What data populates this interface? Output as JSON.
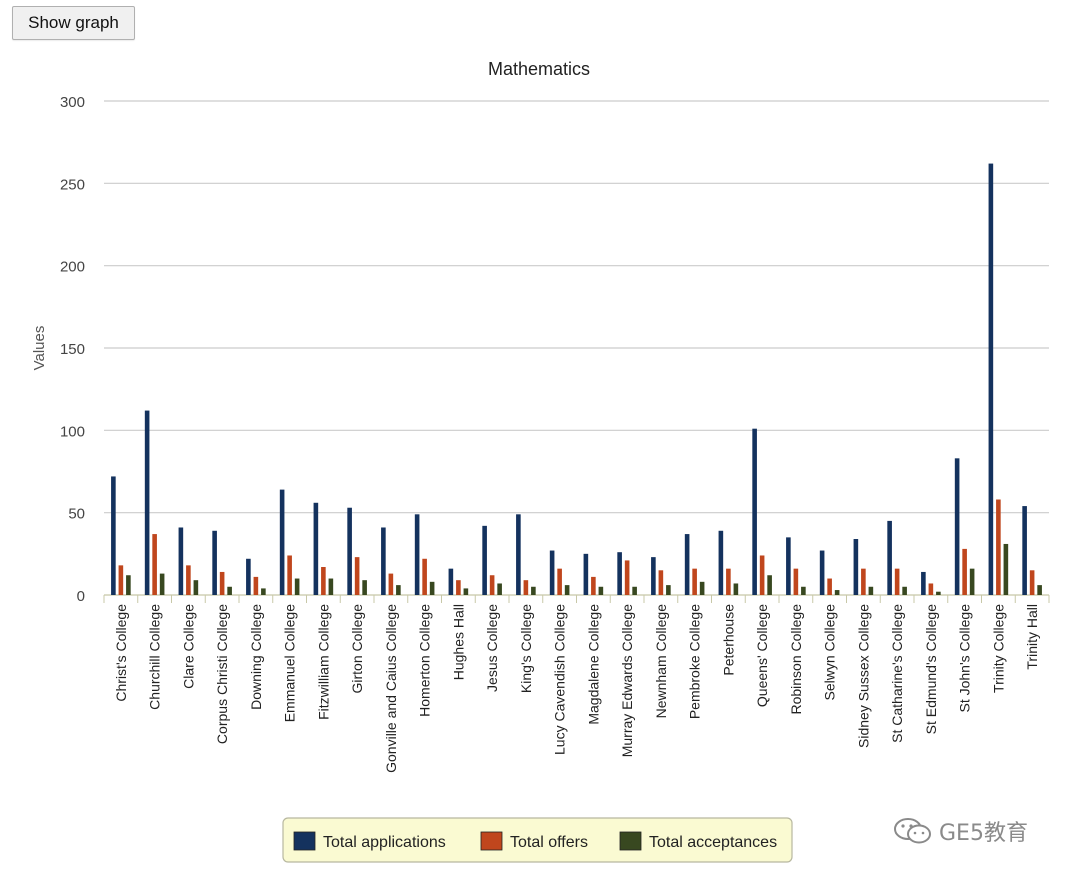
{
  "toolbar": {
    "show_graph_label": "Show graph"
  },
  "watermark": {
    "text": "GE5教育",
    "icon": "wechat-icon"
  },
  "colors": {
    "applications": "#14325e",
    "offers": "#c0461d",
    "acceptances": "#384820",
    "grid": "#cccccc",
    "axis_text": "#444444",
    "legend_bg": "#fafad2",
    "legend_border": "#b8b8a0"
  },
  "chart_data": {
    "type": "bar",
    "title": "Mathematics",
    "xlabel": "",
    "ylabel": "Values",
    "ylim": [
      0,
      300
    ],
    "yticks": [
      0,
      50,
      100,
      150,
      200,
      250,
      300
    ],
    "grid": true,
    "legend_position": "bottom",
    "categories": [
      "Christ's College",
      "Churchill College",
      "Clare College",
      "Corpus Christi College",
      "Downing College",
      "Emmanuel College",
      "Fitzwilliam College",
      "Girton College",
      "Gonville and Caius College",
      "Homerton College",
      "Hughes Hall",
      "Jesus College",
      "King's College",
      "Lucy Cavendish College",
      "Magdalene College",
      "Murray Edwards College",
      "Newnham College",
      "Pembroke College",
      "Peterhouse",
      "Queens' College",
      "Robinson College",
      "Selwyn College",
      "Sidney Sussex College",
      "St Catharine's College",
      "St Edmund's College",
      "St John's College",
      "Trinity College",
      "Trinity Hall"
    ],
    "series": [
      {
        "name": "Total applications",
        "values": [
          72,
          112,
          41,
          39,
          22,
          64,
          56,
          53,
          41,
          49,
          16,
          42,
          49,
          27,
          25,
          26,
          23,
          37,
          39,
          101,
          35,
          27,
          34,
          45,
          14,
          83,
          262,
          54
        ]
      },
      {
        "name": "Total offers",
        "values": [
          18,
          37,
          18,
          14,
          11,
          24,
          17,
          23,
          13,
          22,
          9,
          12,
          9,
          16,
          11,
          21,
          15,
          16,
          16,
          24,
          16,
          10,
          16,
          16,
          7,
          28,
          58,
          15
        ]
      },
      {
        "name": "Total acceptances",
        "values": [
          12,
          13,
          9,
          5,
          4,
          10,
          10,
          9,
          6,
          8,
          4,
          7,
          5,
          6,
          5,
          5,
          6,
          8,
          7,
          12,
          5,
          3,
          5,
          5,
          2,
          16,
          31,
          6
        ]
      }
    ]
  }
}
